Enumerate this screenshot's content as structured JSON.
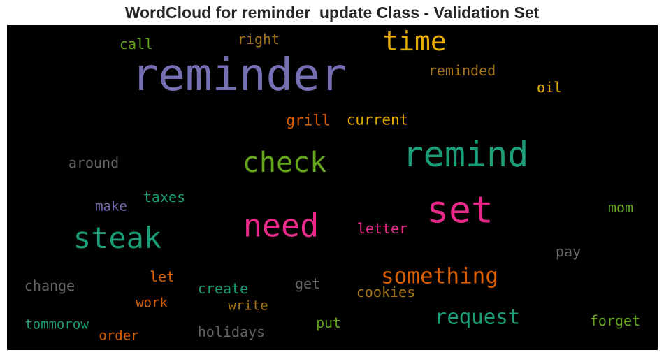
{
  "chart_data": {
    "type": "wordcloud",
    "title": "WordCloud for reminder_update Class - Validation Set",
    "background": "#000000",
    "words": [
      {
        "text": "reminder",
        "size": 1.0,
        "color": "#7570b3"
      },
      {
        "text": "set",
        "size": 0.83,
        "color": "#e7298a"
      },
      {
        "text": "remind",
        "size": 0.78,
        "color": "#1b9e77"
      },
      {
        "text": "need",
        "size": 0.7,
        "color": "#e7298a"
      },
      {
        "text": "steak",
        "size": 0.65,
        "color": "#1b9e77"
      },
      {
        "text": "check",
        "size": 0.63,
        "color": "#66a61e"
      },
      {
        "text": "time",
        "size": 0.6,
        "color": "#e6ab02"
      },
      {
        "text": "something",
        "size": 0.48,
        "color": "#d95f02"
      },
      {
        "text": "request",
        "size": 0.46,
        "color": "#1b9e77"
      },
      {
        "text": "current",
        "size": 0.33,
        "color": "#e6ab02"
      },
      {
        "text": "grill",
        "size": 0.33,
        "color": "#d95f02"
      },
      {
        "text": "letter",
        "size": 0.32,
        "color": "#e7298a"
      },
      {
        "text": "oil",
        "size": 0.32,
        "color": "#e6ab02"
      },
      {
        "text": "reminded",
        "size": 0.31,
        "color": "#a6761d"
      },
      {
        "text": "right",
        "size": 0.31,
        "color": "#a6761d"
      },
      {
        "text": "call",
        "size": 0.31,
        "color": "#66a61e"
      },
      {
        "text": "around",
        "size": 0.31,
        "color": "#666666"
      },
      {
        "text": "taxes",
        "size": 0.31,
        "color": "#1b9e77"
      },
      {
        "text": "make",
        "size": 0.3,
        "color": "#7570b3"
      },
      {
        "text": "mom",
        "size": 0.31,
        "color": "#66a61e"
      },
      {
        "text": "pay",
        "size": 0.31,
        "color": "#666666"
      },
      {
        "text": "change",
        "size": 0.31,
        "color": "#666666"
      },
      {
        "text": "let",
        "size": 0.31,
        "color": "#d95f02"
      },
      {
        "text": "create",
        "size": 0.31,
        "color": "#1b9e77"
      },
      {
        "text": "get",
        "size": 0.31,
        "color": "#666666"
      },
      {
        "text": "cookies",
        "size": 0.31,
        "color": "#a6761d"
      },
      {
        "text": "work",
        "size": 0.3,
        "color": "#d95f02"
      },
      {
        "text": "write",
        "size": 0.3,
        "color": "#a6761d"
      },
      {
        "text": "forget",
        "size": 0.31,
        "color": "#66a61e"
      },
      {
        "text": "tommorow",
        "size": 0.3,
        "color": "#1b9e77"
      },
      {
        "text": "holidays",
        "size": 0.31,
        "color": "#666666"
      },
      {
        "text": "put",
        "size": 0.31,
        "color": "#66a61e"
      },
      {
        "text": "order",
        "size": 0.3,
        "color": "#d95f02"
      }
    ]
  }
}
